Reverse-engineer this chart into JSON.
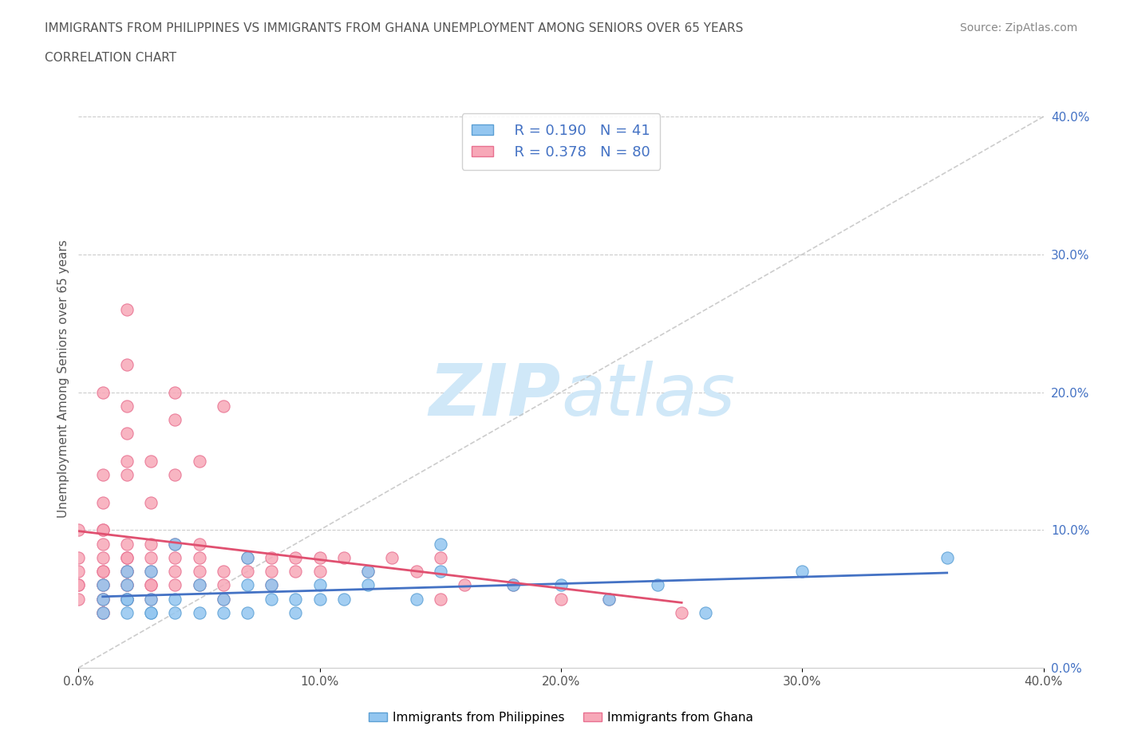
{
  "title_line1": "IMMIGRANTS FROM PHILIPPINES VS IMMIGRANTS FROM GHANA UNEMPLOYMENT AMONG SENIORS OVER 65 YEARS",
  "title_line2": "CORRELATION CHART",
  "source": "Source: ZipAtlas.com",
  "ylabel": "Unemployment Among Seniors over 65 years",
  "xlim": [
    0.0,
    0.4
  ],
  "ylim": [
    0.0,
    0.42
  ],
  "xticks": [
    0.0,
    0.1,
    0.2,
    0.3,
    0.4
  ],
  "yticks_right": [
    0.0,
    0.1,
    0.2,
    0.3,
    0.4
  ],
  "xtick_labels": [
    "0.0%",
    "10.0%",
    "20.0%",
    "30.0%",
    "40.0%"
  ],
  "ytick_labels_right": [
    "0.0%",
    "10.0%",
    "20.0%",
    "30.0%",
    "40.0%"
  ],
  "philippines_color": "#93c6f0",
  "ghana_color": "#f7a8b8",
  "philippines_edge": "#5b9fd4",
  "ghana_edge": "#e87090",
  "philippines_line_color": "#4472c4",
  "ghana_line_color": "#e05070",
  "diag_line_color": "#c0c0c0",
  "watermark_color": "#d0e8f8",
  "R_philippines": 0.19,
  "N_philippines": 41,
  "R_ghana": 0.378,
  "N_ghana": 80,
  "legend_label_philippines": "Immigrants from Philippines",
  "legend_label_ghana": "Immigrants from Ghana",
  "philippines_x": [
    0.01,
    0.01,
    0.01,
    0.02,
    0.02,
    0.02,
    0.02,
    0.02,
    0.03,
    0.03,
    0.03,
    0.03,
    0.04,
    0.04,
    0.04,
    0.05,
    0.05,
    0.06,
    0.06,
    0.07,
    0.07,
    0.07,
    0.08,
    0.08,
    0.09,
    0.09,
    0.1,
    0.1,
    0.11,
    0.12,
    0.12,
    0.14,
    0.15,
    0.15,
    0.18,
    0.2,
    0.22,
    0.24,
    0.26,
    0.3,
    0.36
  ],
  "philippines_y": [
    0.04,
    0.05,
    0.06,
    0.04,
    0.05,
    0.05,
    0.06,
    0.07,
    0.04,
    0.04,
    0.05,
    0.07,
    0.04,
    0.05,
    0.09,
    0.04,
    0.06,
    0.04,
    0.05,
    0.04,
    0.06,
    0.08,
    0.05,
    0.06,
    0.04,
    0.05,
    0.05,
    0.06,
    0.05,
    0.06,
    0.07,
    0.05,
    0.09,
    0.07,
    0.06,
    0.06,
    0.05,
    0.06,
    0.04,
    0.07,
    0.08
  ],
  "ghana_x": [
    0.0,
    0.0,
    0.0,
    0.0,
    0.0,
    0.0,
    0.01,
    0.01,
    0.01,
    0.01,
    0.01,
    0.01,
    0.01,
    0.01,
    0.01,
    0.01,
    0.01,
    0.01,
    0.01,
    0.01,
    0.01,
    0.02,
    0.02,
    0.02,
    0.02,
    0.02,
    0.02,
    0.02,
    0.02,
    0.02,
    0.02,
    0.02,
    0.02,
    0.02,
    0.02,
    0.02,
    0.03,
    0.03,
    0.03,
    0.03,
    0.03,
    0.03,
    0.03,
    0.03,
    0.04,
    0.04,
    0.04,
    0.04,
    0.04,
    0.04,
    0.04,
    0.05,
    0.05,
    0.05,
    0.05,
    0.05,
    0.06,
    0.06,
    0.06,
    0.06,
    0.07,
    0.07,
    0.08,
    0.08,
    0.08,
    0.09,
    0.09,
    0.1,
    0.1,
    0.11,
    0.12,
    0.13,
    0.14,
    0.15,
    0.15,
    0.16,
    0.18,
    0.2,
    0.22,
    0.25
  ],
  "ghana_y": [
    0.05,
    0.06,
    0.06,
    0.07,
    0.08,
    0.1,
    0.04,
    0.04,
    0.05,
    0.05,
    0.06,
    0.06,
    0.07,
    0.07,
    0.08,
    0.09,
    0.1,
    0.1,
    0.12,
    0.14,
    0.2,
    0.05,
    0.05,
    0.06,
    0.06,
    0.07,
    0.07,
    0.08,
    0.08,
    0.09,
    0.14,
    0.15,
    0.17,
    0.19,
    0.22,
    0.26,
    0.05,
    0.06,
    0.06,
    0.07,
    0.08,
    0.09,
    0.12,
    0.15,
    0.06,
    0.07,
    0.08,
    0.09,
    0.14,
    0.18,
    0.2,
    0.06,
    0.07,
    0.08,
    0.09,
    0.15,
    0.05,
    0.06,
    0.07,
    0.19,
    0.07,
    0.08,
    0.06,
    0.07,
    0.08,
    0.07,
    0.08,
    0.07,
    0.08,
    0.08,
    0.07,
    0.08,
    0.07,
    0.05,
    0.08,
    0.06,
    0.06,
    0.05,
    0.05,
    0.04
  ]
}
